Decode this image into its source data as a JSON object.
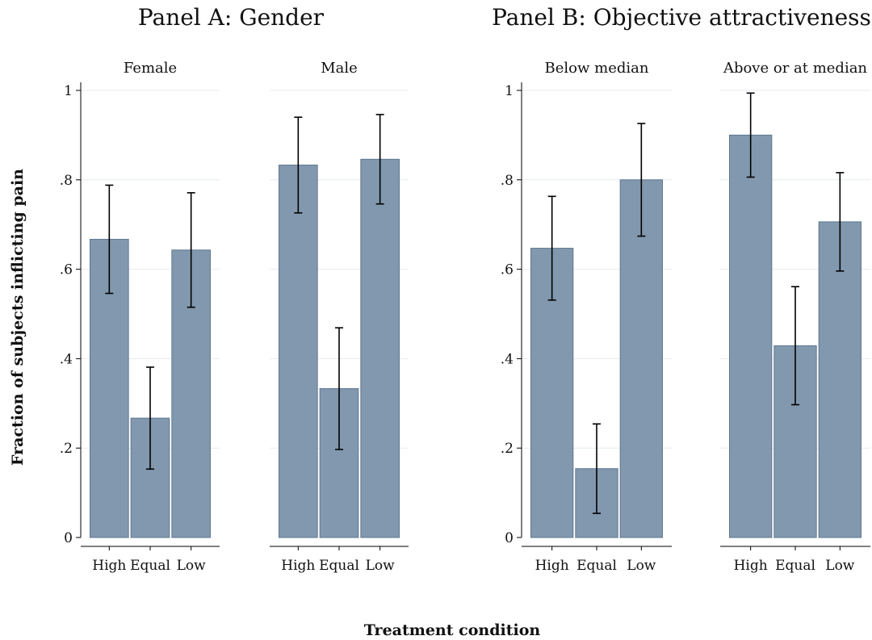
{
  "panels": [
    {
      "title": "Panel A: Gender"
    },
    {
      "title": "Panel B: Objective attractiveness"
    }
  ],
  "ylabel": "Fraction of subjects inflicting pain",
  "xlabel": "Treatment condition",
  "colors": {
    "bar": "#8198ae",
    "bar_edge": "#5f7890",
    "error": "#000000",
    "grid": "#e4ebf0"
  },
  "chart_data": {
    "type": "bar",
    "ylim": [
      0,
      1
    ],
    "yticks": [
      0,
      0.2,
      0.4,
      0.6,
      0.8,
      1
    ],
    "ytick_labels": [
      "0",
      ".2",
      ".4",
      ".6",
      ".8",
      "1"
    ],
    "grid": true,
    "categories": [
      "High",
      "Equal",
      "Low"
    ],
    "subplots": [
      {
        "panel": "Panel A: Gender",
        "title": "Female",
        "values": [
          0.667,
          0.267,
          0.643
        ],
        "ci_low": [
          0.546,
          0.153,
          0.515
        ],
        "ci_high": [
          0.788,
          0.381,
          0.771
        ]
      },
      {
        "panel": "Panel A: Gender",
        "title": "Male",
        "values": [
          0.833,
          0.333,
          0.846
        ],
        "ci_low": [
          0.726,
          0.197,
          0.746
        ],
        "ci_high": [
          0.94,
          0.469,
          0.946
        ]
      },
      {
        "panel": "Panel B: Objective attractiveness",
        "title": "Below median",
        "values": [
          0.647,
          0.154,
          0.8
        ],
        "ci_low": [
          0.531,
          0.054,
          0.674
        ],
        "ci_high": [
          0.763,
          0.254,
          0.926
        ]
      },
      {
        "panel": "Panel B: Objective attractiveness",
        "title": "Above or at median",
        "values": [
          0.9,
          0.429,
          0.706
        ],
        "ci_low": [
          0.806,
          0.297,
          0.596
        ],
        "ci_high": [
          0.994,
          0.561,
          0.816
        ]
      }
    ]
  }
}
